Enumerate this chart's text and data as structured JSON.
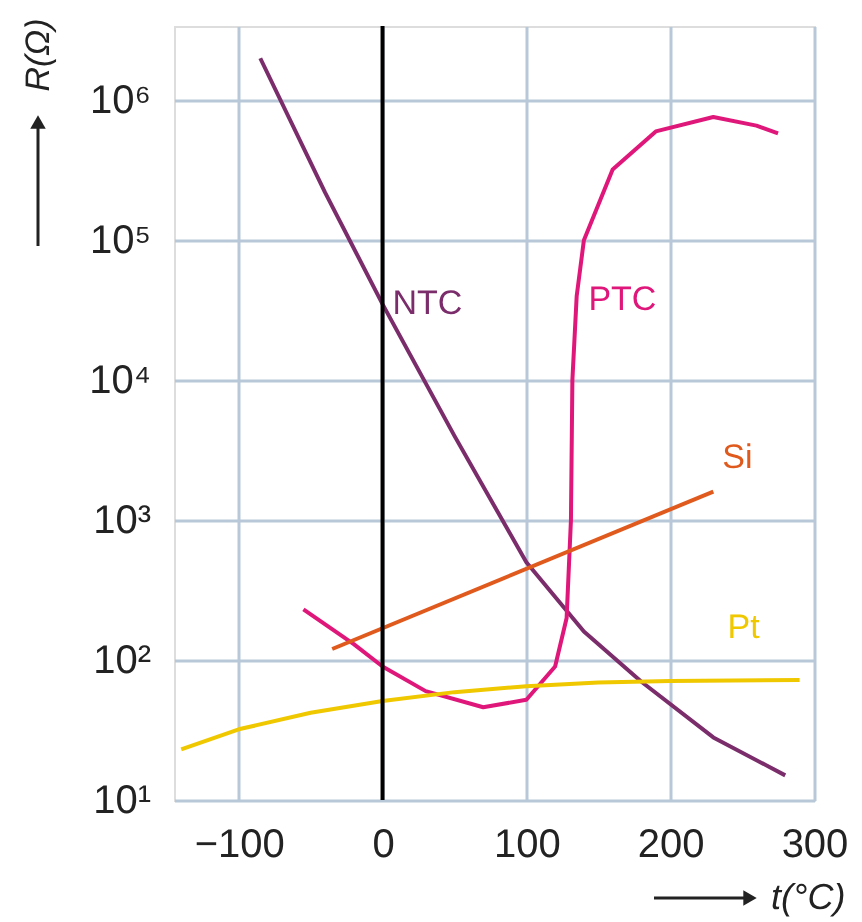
{
  "chart_data": {
    "type": "line",
    "xlabel": "t(°C)",
    "ylabel": "R(Ω)",
    "log": true,
    "grid": true,
    "xlim": [
      -145,
      300
    ],
    "xticks": [
      -100,
      0,
      100,
      200,
      300
    ],
    "ylim": [
      10,
      3400000
    ],
    "yticks": [
      {
        "value": 10,
        "label": "10¹"
      },
      {
        "value": 100,
        "label": "10²"
      },
      {
        "value": 1000,
        "label": "10³"
      },
      {
        "value": 10000,
        "label": "10⁴"
      },
      {
        "value": 100000,
        "label": "10⁵"
      },
      {
        "value": 1000000,
        "label": "10⁶"
      }
    ],
    "ref_lines": [
      {
        "axis": "x",
        "value": 0,
        "color": "#000000"
      }
    ],
    "series": [
      {
        "name": "NTC",
        "color": "#7b2d6b",
        "x": [
          -85,
          -40,
          0,
          50,
          100,
          140,
          180,
          230,
          280
        ],
        "values": [
          2000000,
          220000,
          35000,
          4000,
          500,
          160,
          70,
          28,
          15
        ]
      },
      {
        "name": "PTC",
        "color": "#e0177a",
        "x": [
          -55,
          -20,
          0,
          30,
          70,
          100,
          120,
          128,
          131,
          132,
          135,
          140,
          160,
          190,
          230,
          260,
          275
        ],
        "values": [
          230,
          130,
          90,
          60,
          46,
          52,
          90,
          200,
          1000,
          10000,
          40000,
          100000,
          320000,
          600000,
          760000,
          660000,
          580000
        ]
      },
      {
        "name": "Si",
        "color": "#e05a1e",
        "x": [
          -35,
          230
        ],
        "values": [
          120,
          1600
        ]
      },
      {
        "name": "Pt",
        "color": "#f0c800",
        "x": [
          -140,
          -100,
          -50,
          0,
          50,
          100,
          150,
          200,
          290
        ],
        "values": [
          23,
          32,
          42,
          51,
          59,
          65,
          69,
          71,
          72
        ]
      }
    ]
  }
}
